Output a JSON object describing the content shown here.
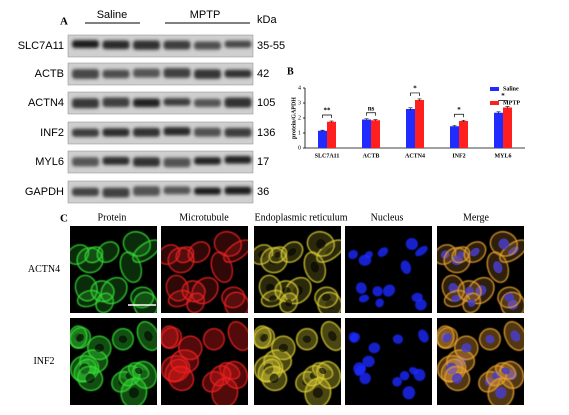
{
  "panel_a": {
    "label": "A",
    "groups": [
      "Saline",
      "MPTP"
    ],
    "unit": "kDa",
    "rows": [
      {
        "protein": "SLC7A11",
        "weight": "35-55"
      },
      {
        "protein": "ACTB",
        "weight": "42"
      },
      {
        "protein": "ACTN4",
        "weight": "105"
      },
      {
        "protein": "INF2",
        "weight": "136"
      },
      {
        "protein": "MYL6",
        "weight": "17"
      },
      {
        "protein": "GAPDH",
        "weight": "36"
      }
    ]
  },
  "chart_data": {
    "type": "bar",
    "panel_label": "B",
    "ylabel": "protein/GAPDH",
    "categories": [
      "SLC7A11",
      "ACTB",
      "ACTN4",
      "INF2",
      "MYL6"
    ],
    "series": [
      {
        "name": "Saline",
        "color": "#1f2bff",
        "values": [
          1.15,
          1.9,
          2.6,
          1.45,
          2.35
        ],
        "errors": [
          0.04,
          0.05,
          0.08,
          0.05,
          0.06
        ]
      },
      {
        "name": "MPTP",
        "color": "#ff1f1f",
        "values": [
          1.75,
          1.85,
          3.2,
          1.8,
          2.7
        ],
        "errors": [
          0.05,
          0.04,
          0.07,
          0.05,
          0.06
        ]
      }
    ],
    "significance": [
      "**",
      "ns",
      "*",
      "*",
      "*"
    ],
    "ylim": [
      0,
      4
    ],
    "yticks": [
      0,
      1,
      2,
      3,
      4
    ],
    "legend": "upper right"
  },
  "panel_c": {
    "label": "C",
    "columns": [
      "Protein",
      "Microtubule",
      "Endoplasmic reticulum",
      "Nucleus",
      "Merge"
    ],
    "rows": [
      "ACTN4",
      "INF2"
    ]
  }
}
